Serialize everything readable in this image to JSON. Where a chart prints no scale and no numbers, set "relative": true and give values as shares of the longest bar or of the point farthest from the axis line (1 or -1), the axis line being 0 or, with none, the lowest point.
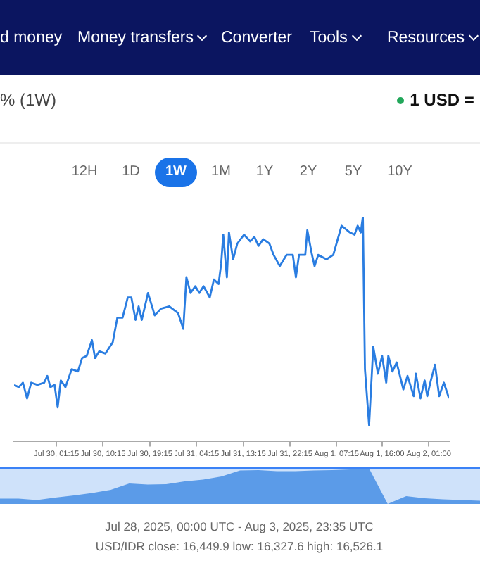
{
  "chart_data": [
    {
      "type": "line",
      "relative": true,
      "subtitle": "Jul 28, 2025, 00:00 UTC - Aug 3, 2025, 23:35 UTC",
      "annotations": [
        "d money",
        "Money transfers",
        "Converter",
        "Tools",
        "Resources",
        "% (1W)",
        "1 USD =",
        "12H",
        "1D",
        "1W",
        "1M",
        "1Y",
        "2Y",
        "5Y",
        "10Y",
        "USD/IDR close: 16,449.9 low: 16,327.6 high: 16,526.1"
      ],
      "xlim": [
        "2025-07-29T17:06",
        "2025-08-02T04:54"
      ],
      "xticks": [
        {
          "value": "2025-07-30T01:15",
          "label": "Jul 30, 01:15"
        },
        {
          "value": "2025-07-30T10:15",
          "label": "Jul 30, 10:15"
        },
        {
          "value": "2025-07-30T19:15",
          "label": "Jul 30, 19:15"
        },
        {
          "value": "2025-07-31T04:15",
          "label": "Jul 31, 04:15"
        },
        {
          "value": "2025-07-31T13:15",
          "label": "Jul 31, 13:15"
        },
        {
          "value": "2025-07-31T22:15",
          "label": "Jul 31, 22:15"
        },
        {
          "value": "2025-08-01T07:15",
          "label": "Aug 1, 07:15"
        },
        {
          "value": "2025-08-01T16:00",
          "label": "Aug 1, 16:00"
        },
        {
          "value": "2025-08-02T01:00",
          "label": "Aug 2, 01:00"
        }
      ],
      "marker": "none",
      "line_style": "solid",
      "series": [
        {
          "color": "#2a7de1",
          "x": [
            "2025-07-29T17:06",
            "2025-07-29T18:00",
            "2025-07-29T18:48",
            "2025-07-29T19:36",
            "2025-07-29T20:24",
            "2025-07-29T21:36",
            "2025-07-29T22:54",
            "2025-07-29T23:30",
            "2025-07-30T00:06",
            "2025-07-30T00:54",
            "2025-07-30T01:30",
            "2025-07-30T02:06",
            "2025-07-30T03:00",
            "2025-07-30T04:12",
            "2025-07-30T05:24",
            "2025-07-30T06:12",
            "2025-07-30T07:06",
            "2025-07-30T08:06",
            "2025-07-30T08:42",
            "2025-07-30T09:30",
            "2025-07-30T10:42",
            "2025-07-30T12:06",
            "2025-07-30T13:00",
            "2025-07-30T14:00",
            "2025-07-30T15:00",
            "2025-07-30T15:42",
            "2025-07-30T16:30",
            "2025-07-30T17:06",
            "2025-07-30T17:42",
            "2025-07-30T18:54",
            "2025-07-30T20:12",
            "2025-07-30T21:24",
            "2025-07-30T23:00",
            "2025-07-31T00:42",
            "2025-07-31T01:42",
            "2025-07-31T02:18",
            "2025-07-31T03:06",
            "2025-07-31T04:00",
            "2025-07-31T04:48",
            "2025-07-31T05:36",
            "2025-07-31T06:48",
            "2025-07-31T07:36",
            "2025-07-31T08:30",
            "2025-07-31T09:00",
            "2025-07-31T09:24",
            "2025-07-31T10:06",
            "2025-07-31T10:30",
            "2025-07-31T11:18",
            "2025-07-31T12:06",
            "2025-07-31T13:24",
            "2025-07-31T14:36",
            "2025-07-31T15:24",
            "2025-07-31T16:12",
            "2025-07-31T17:06",
            "2025-07-31T18:18",
            "2025-07-31T19:06",
            "2025-07-31T20:18",
            "2025-07-31T21:36",
            "2025-07-31T22:48",
            "2025-07-31T23:24",
            "2025-08-01T00:00",
            "2025-08-01T01:12",
            "2025-08-01T01:36",
            "2025-08-01T02:30",
            "2025-08-01T03:00",
            "2025-08-01T03:42",
            "2025-08-01T05:18",
            "2025-08-01T06:36",
            "2025-08-01T08:12",
            "2025-08-01T09:48",
            "2025-08-01T10:42",
            "2025-08-01T11:18",
            "2025-08-01T11:54",
            "2025-08-01T12:18",
            "2025-08-01T12:42",
            "2025-08-01T13:30",
            "2025-08-01T14:18",
            "2025-08-01T15:12",
            "2025-08-01T16:00",
            "2025-08-01T16:48",
            "2025-08-01T17:12",
            "2025-08-01T18:00",
            "2025-08-01T18:48",
            "2025-08-01T20:06",
            "2025-08-01T20:54",
            "2025-08-01T22:06",
            "2025-08-01T22:30",
            "2025-08-01T23:24",
            "2025-08-02T00:12",
            "2025-08-02T00:42",
            "2025-08-02T01:24",
            "2025-08-02T02:12",
            "2025-08-02T03:00",
            "2025-08-02T03:54",
            "2025-08-02T04:54"
          ],
          "values": [
            0.25,
            0.24,
            0.26,
            0.19,
            0.26,
            0.25,
            0.26,
            0.29,
            0.24,
            0.25,
            0.15,
            0.27,
            0.24,
            0.32,
            0.31,
            0.37,
            0.38,
            0.45,
            0.37,
            0.4,
            0.39,
            0.44,
            0.55,
            0.55,
            0.64,
            0.64,
            0.54,
            0.6,
            0.54,
            0.66,
            0.56,
            0.59,
            0.6,
            0.57,
            0.5,
            0.73,
            0.66,
            0.69,
            0.66,
            0.69,
            0.64,
            0.72,
            0.7,
            0.79,
            0.92,
            0.73,
            0.93,
            0.81,
            0.88,
            0.92,
            0.89,
            0.91,
            0.87,
            0.9,
            0.88,
            0.83,
            0.78,
            0.83,
            0.83,
            0.73,
            0.83,
            0.83,
            0.94,
            0.83,
            0.78,
            0.83,
            0.81,
            0.83,
            0.96,
            0.93,
            0.92,
            0.96,
            0.93,
            1.0,
            0.32,
            0.07,
            0.42,
            0.3,
            0.38,
            0.26,
            0.38,
            0.31,
            0.35,
            0.23,
            0.29,
            0.2,
            0.3,
            0.19,
            0.27,
            0.2,
            0.27,
            0.34,
            0.2,
            0.26,
            0.19
          ]
        }
      ]
    },
    {
      "type": "area",
      "relative": true,
      "tick_labels": false,
      "categories": [
        null,
        null,
        null,
        null,
        null,
        null,
        null,
        null,
        null,
        null,
        null,
        null,
        null,
        null,
        null,
        null,
        null,
        null,
        null,
        null,
        null,
        null,
        null,
        null,
        null,
        null,
        null
      ],
      "series": [
        {
          "color": "#5b9be8",
          "values": [
            0.15,
            0.15,
            0.11,
            0.18,
            0.24,
            0.31,
            0.4,
            0.58,
            0.55,
            0.56,
            0.64,
            0.69,
            0.78,
            0.95,
            0.96,
            0.93,
            0.93,
            0.95,
            0.96,
            0.98,
            1.0,
            0,
            0.22,
            0.16,
            0.13,
            0.11,
            0.09
          ]
        }
      ]
    }
  ]
}
